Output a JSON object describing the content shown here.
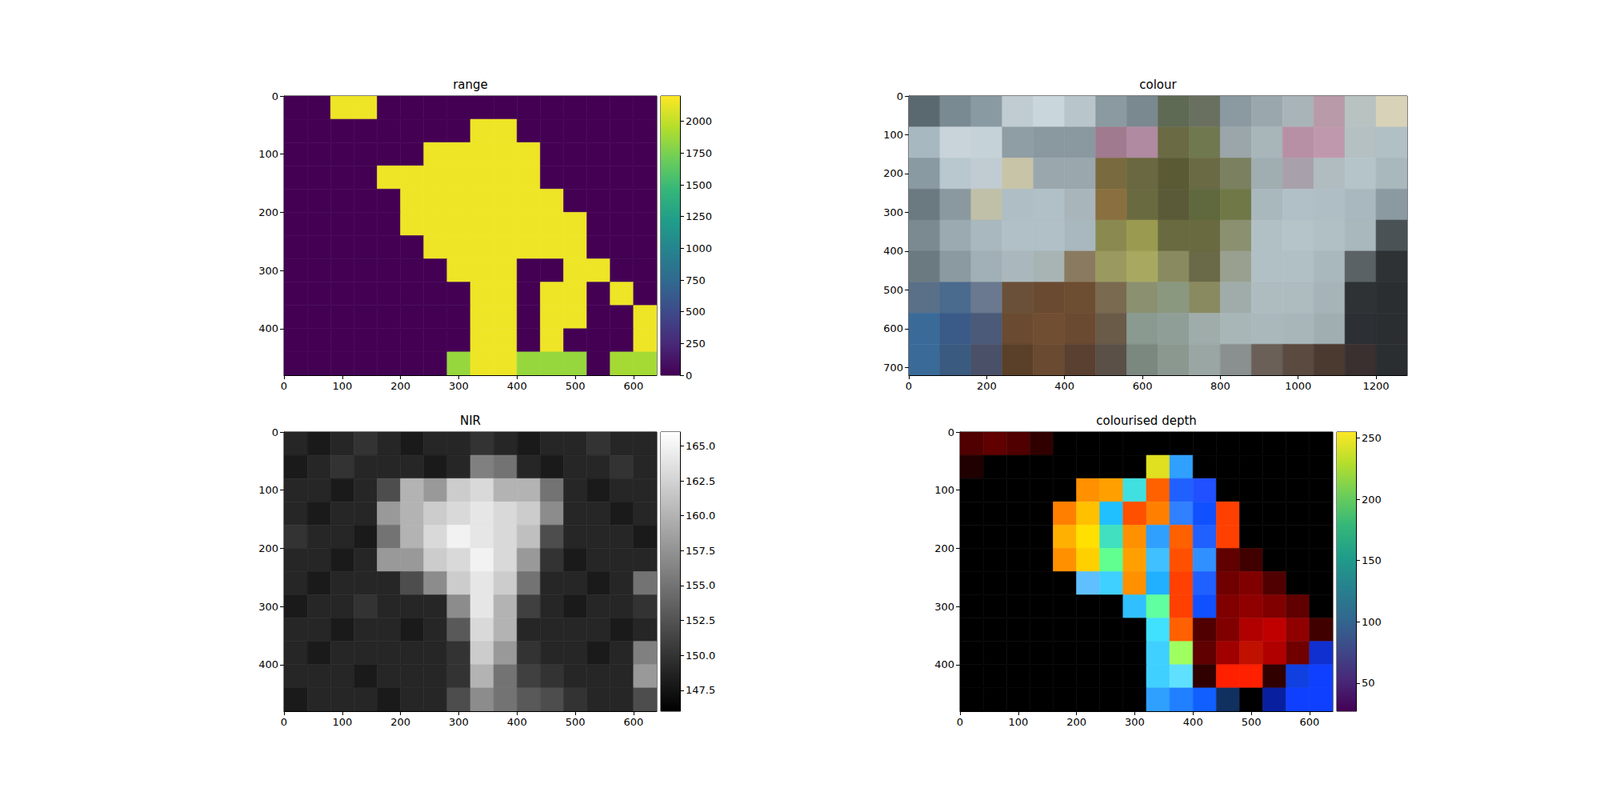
{
  "chart_data": [
    {
      "type": "heatmap",
      "title": "range",
      "xlim": [
        0,
        640
      ],
      "ylim": [
        480,
        0
      ],
      "xticks": [
        0,
        100,
        200,
        300,
        400,
        500,
        600
      ],
      "yticks": [
        0,
        100,
        200,
        300,
        400
      ],
      "cells": [
        [
          0,
          0,
          2150,
          2150,
          0,
          0,
          0,
          0,
          0,
          0,
          0,
          0,
          0,
          0,
          0,
          0
        ],
        [
          0,
          0,
          0,
          0,
          0,
          0,
          0,
          0,
          2150,
          2150,
          0,
          0,
          0,
          0,
          0,
          0
        ],
        [
          0,
          0,
          0,
          0,
          0,
          0,
          2150,
          2150,
          2150,
          2150,
          2150,
          0,
          0,
          0,
          0,
          0
        ],
        [
          0,
          0,
          0,
          0,
          2150,
          2150,
          2150,
          2150,
          2150,
          2150,
          2150,
          0,
          0,
          0,
          0,
          0
        ],
        [
          0,
          0,
          0,
          0,
          0,
          2150,
          2150,
          2150,
          2150,
          2150,
          2150,
          2150,
          0,
          0,
          0,
          0
        ],
        [
          0,
          0,
          0,
          0,
          0,
          2150,
          2150,
          2150,
          2150,
          2150,
          2150,
          2150,
          2150,
          0,
          0,
          0
        ],
        [
          0,
          0,
          0,
          0,
          0,
          0,
          2150,
          2150,
          2150,
          2150,
          2150,
          2150,
          2150,
          0,
          0,
          0
        ],
        [
          0,
          0,
          0,
          0,
          0,
          0,
          0,
          2150,
          2150,
          2150,
          0,
          0,
          2150,
          2150,
          0,
          0
        ],
        [
          0,
          0,
          0,
          0,
          0,
          0,
          0,
          0,
          2150,
          2150,
          0,
          2150,
          2150,
          0,
          2150,
          0
        ],
        [
          0,
          0,
          0,
          0,
          0,
          0,
          0,
          0,
          2150,
          2150,
          0,
          2150,
          2150,
          0,
          0,
          2150
        ],
        [
          0,
          0,
          0,
          0,
          0,
          0,
          0,
          0,
          2150,
          2150,
          0,
          2150,
          0,
          0,
          0,
          2150
        ],
        [
          0,
          0,
          0,
          0,
          0,
          0,
          0,
          1850,
          2150,
          2150,
          1850,
          1850,
          1850,
          0,
          1900,
          1900
        ]
      ],
      "colorbar": {
        "range": [
          0,
          2200
        ],
        "ticks": [
          0,
          250,
          500,
          750,
          1000,
          1250,
          1500,
          1750,
          2000
        ],
        "color": "viridis"
      }
    },
    {
      "type": "image",
      "title": "colour",
      "xlim": [
        0,
        1280
      ],
      "ylim": [
        720,
        0
      ],
      "xticks": [
        0,
        200,
        400,
        600,
        800,
        1000,
        1200
      ],
      "yticks": [
        0,
        100,
        200,
        300,
        400,
        500,
        600,
        700
      ],
      "colors": [
        [
          "#5a6870",
          "#7a8a92",
          "#8a9aa2",
          "#c0ccd2",
          "#c9d6dc",
          "#b8c6cc",
          "#8a9aa0",
          "#7a8890",
          "#5f6a55",
          "#6a7060",
          "#8a9aa0",
          "#9aa8ae",
          "#a8b4b8",
          "#b89aa8",
          "#b8c2c0",
          "#d8d2b8"
        ],
        [
          "#a8b8c0",
          "#c8d4da",
          "#c5d2d8",
          "#8f9ea5",
          "#8a98a0",
          "#8a98a0",
          "#a07a8e",
          "#b08aa0",
          "#6a6a45",
          "#707850",
          "#9aa6aa",
          "#a8b6ba",
          "#b890a5",
          "#c098ad",
          "#b4c0c2",
          "#b0c0c4"
        ],
        [
          "#8a9aa2",
          "#b8c8ce",
          "#c0ccd2",
          "#c8c4a8",
          "#9aa8ae",
          "#9aa8ae",
          "#7a6a40",
          "#6a6840",
          "#5a5a35",
          "#6a6a45",
          "#7a8060",
          "#a0aeb2",
          "#a8a0aa",
          "#b0bcc0",
          "#b4c4c8",
          "#a8b8bc"
        ],
        [
          "#6a7a80",
          "#8a98a0",
          "#c0c0a8",
          "#aebec4",
          "#b0c0c6",
          "#a8b6bb",
          "#8a7040",
          "#6a6a40",
          "#5a5a38",
          "#60683e",
          "#707848",
          "#a8b8bc",
          "#b0c0c6",
          "#aebec4",
          "#a8b8be",
          "#8a9aa0"
        ],
        [
          "#7a8a90",
          "#9aaab0",
          "#a8b8be",
          "#b0c0c6",
          "#b0c0c6",
          "#a8b8be",
          "#8a8a50",
          "#9a9a50",
          "#6a6a40",
          "#6a6a40",
          "#8a9070",
          "#b0c0c4",
          "#b4c4c8",
          "#b0c0c4",
          "#a8b8bc",
          "#4a5256"
        ],
        [
          "#6a7a80",
          "#8a9aa0",
          "#a0b0b6",
          "#aab8bd",
          "#a8b4b4",
          "#8a7a60",
          "#9a9a60",
          "#a8a860",
          "#8a8a60",
          "#6a6a48",
          "#9aa090",
          "#b0c0c4",
          "#b0c0c4",
          "#a8b8bc",
          "#5a6266",
          "#2e3234"
        ],
        [
          "#5a7088",
          "#4a6a8e",
          "#6a7890",
          "#6a5038",
          "#6a4a30",
          "#6e4e32",
          "#7a6a50",
          "#8a9070",
          "#8a9880",
          "#8a8a60",
          "#a0acaa",
          "#aebcc0",
          "#aebcc0",
          "#a6b4b8",
          "#2e3234",
          "#2a2e30"
        ],
        [
          "#3a6a98",
          "#3a5a88",
          "#4a5a78",
          "#6a4a30",
          "#704e32",
          "#6a4a30",
          "#6a5a48",
          "#8a9a90",
          "#909e98",
          "#a0acaa",
          "#a8b6b8",
          "#aab8bc",
          "#a8b6ba",
          "#a0aeb2",
          "#2c3034",
          "#2a2e30"
        ],
        [
          "#3a6a98",
          "#3a5a80",
          "#4a5068",
          "#5a4028",
          "#6a4a30",
          "#5a4030",
          "#5a5048",
          "#7a8880",
          "#8a9890",
          "#9aa6a4",
          "#8a9090",
          "#6a6058",
          "#5a4a40",
          "#4a3a30",
          "#3a3030",
          "#2a2e30"
        ]
      ]
    },
    {
      "type": "heatmap",
      "title": "NIR",
      "xlim": [
        0,
        640
      ],
      "ylim": [
        480,
        0
      ],
      "xticks": [
        0,
        100,
        200,
        300,
        400,
        500,
        600
      ],
      "yticks": [
        0,
        100,
        200,
        300,
        400
      ],
      "cells": [
        [
          149,
          148,
          149,
          150,
          149,
          148,
          149,
          149,
          150,
          149,
          148,
          149,
          149,
          150,
          149,
          149
        ],
        [
          148,
          149,
          150,
          149,
          149,
          149,
          148,
          149,
          156,
          155,
          149,
          148,
          149,
          149,
          150,
          149
        ],
        [
          149,
          149,
          148,
          149,
          152,
          160,
          158,
          162,
          163,
          160,
          160,
          155,
          149,
          148,
          149,
          149
        ],
        [
          149,
          148,
          149,
          149,
          158,
          160,
          162,
          163,
          164,
          163,
          162,
          157,
          149,
          149,
          148,
          149
        ],
        [
          150,
          149,
          149,
          148,
          155,
          160,
          163,
          165,
          164,
          163,
          161,
          152,
          149,
          149,
          149,
          148
        ],
        [
          149,
          149,
          148,
          149,
          158,
          158,
          162,
          163,
          165,
          163,
          158,
          150,
          148,
          149,
          149,
          149
        ],
        [
          149,
          148,
          149,
          149,
          149,
          152,
          157,
          162,
          164,
          162,
          155,
          149,
          149,
          148,
          149,
          155
        ],
        [
          148,
          149,
          149,
          150,
          149,
          149,
          149,
          157,
          164,
          160,
          151,
          149,
          148,
          149,
          149,
          150
        ],
        [
          149,
          149,
          148,
          149,
          149,
          148,
          149,
          153,
          163,
          160,
          149,
          149,
          149,
          149,
          148,
          149
        ],
        [
          149,
          148,
          149,
          149,
          149,
          149,
          149,
          150,
          162,
          158,
          150,
          149,
          149,
          148,
          149,
          156
        ],
        [
          149,
          149,
          149,
          148,
          149,
          149,
          149,
          150,
          160,
          155,
          151,
          150,
          149,
          149,
          149,
          158
        ],
        [
          148,
          149,
          149,
          149,
          148,
          149,
          149,
          152,
          157,
          155,
          153,
          152,
          150,
          149,
          149,
          152
        ]
      ],
      "colorbar": {
        "range": [
          146,
          166
        ],
        "ticks": [
          147.5,
          {
            "value": 150,
            "label": "150.0"
          },
          152.5,
          {
            "value": 155,
            "label": "155.0"
          },
          157.5,
          {
            "value": 160,
            "label": "160.0"
          },
          162.5,
          {
            "value": 165,
            "label": "165.0"
          }
        ],
        "color": "gray"
      }
    },
    {
      "type": "image",
      "title": "colourised depth",
      "xlim": [
        0,
        640
      ],
      "ylim": [
        480,
        0
      ],
      "xticks": [
        0,
        100,
        200,
        300,
        400,
        500,
        600
      ],
      "yticks": [
        0,
        100,
        200,
        300,
        400
      ],
      "colors": [
        [
          "#500000",
          "#600000",
          "#500000",
          "#300000",
          "#000000",
          "#000000",
          "#000000",
          "#000000",
          "#000000",
          "#000000",
          "#000000",
          "#000000",
          "#000000",
          "#000000",
          "#000000",
          "#000000"
        ],
        [
          "#200000",
          "#000000",
          "#000000",
          "#000000",
          "#000000",
          "#000000",
          "#000000",
          "#000000",
          "#e0e020",
          "#30a0ff",
          "#000000",
          "#000000",
          "#000000",
          "#000000",
          "#000000",
          "#000000"
        ],
        [
          "#000000",
          "#000000",
          "#000000",
          "#000000",
          "#000000",
          "#ff9000",
          "#ffa000",
          "#40e0e0",
          "#ff6000",
          "#2060ff",
          "#2050ff",
          "#000000",
          "#000000",
          "#000000",
          "#000000",
          "#000000"
        ],
        [
          "#000000",
          "#000000",
          "#000000",
          "#000000",
          "#ff8000",
          "#ffc000",
          "#20c0ff",
          "#ff5000",
          "#ff8000",
          "#3080ff",
          "#1050ff",
          "#ff4000",
          "#000000",
          "#000000",
          "#000000",
          "#000000"
        ],
        [
          "#000000",
          "#000000",
          "#000000",
          "#000000",
          "#ffb000",
          "#ffe000",
          "#40e0c0",
          "#ff9000",
          "#30a0ff",
          "#ff6000",
          "#2060ff",
          "#ff4000",
          "#000000",
          "#000000",
          "#000000",
          "#000000"
        ],
        [
          "#000000",
          "#000000",
          "#000000",
          "#000000",
          "#ff9000",
          "#ffd000",
          "#60ff90",
          "#ffa000",
          "#40c0ff",
          "#ff5000",
          "#3090ff",
          "#600000",
          "#400000",
          "#000000",
          "#000000",
          "#000000"
        ],
        [
          "#000000",
          "#000000",
          "#000000",
          "#000000",
          "#000000",
          "#60c0ff",
          "#40d0ff",
          "#ff9000",
          "#20b0ff",
          "#ff4000",
          "#2060ff",
          "#700000",
          "#800000",
          "#500000",
          "#000000",
          "#000000"
        ],
        [
          "#000000",
          "#000000",
          "#000000",
          "#000000",
          "#000000",
          "#000000",
          "#000000",
          "#30c0ff",
          "#60ffa0",
          "#ff4000",
          "#1050ff",
          "#800000",
          "#900000",
          "#800000",
          "#600000",
          "#000000"
        ],
        [
          "#000000",
          "#000000",
          "#000000",
          "#000000",
          "#000000",
          "#000000",
          "#000000",
          "#000000",
          "#40e0ff",
          "#ff6000",
          "#500000",
          "#800000",
          "#b00000",
          "#c00000",
          "#900000",
          "#400000"
        ],
        [
          "#000000",
          "#000000",
          "#000000",
          "#000000",
          "#000000",
          "#000000",
          "#000000",
          "#000000",
          "#40d0ff",
          "#a0ff60",
          "#600000",
          "#a00000",
          "#c01000",
          "#b00000",
          "#700000",
          "#1030d0"
        ],
        [
          "#000000",
          "#000000",
          "#000000",
          "#000000",
          "#000000",
          "#000000",
          "#000000",
          "#000000",
          "#40d0ff",
          "#60e0ff",
          "#300000",
          "#ff2000",
          "#ff2000",
          "#300000",
          "#1040e0",
          "#1040ff"
        ],
        [
          "#000000",
          "#000000",
          "#000000",
          "#000000",
          "#000000",
          "#000000",
          "#000000",
          "#000000",
          "#30a0ff",
          "#2080ff",
          "#1060ff",
          "#103060",
          "#000000",
          "#0820a0",
          "#1040ff",
          "#1040ff"
        ]
      ],
      "colorbar": {
        "range": [
          27,
          255
        ],
        "ticks": [
          50,
          100,
          150,
          200,
          250
        ],
        "color": "viridis"
      }
    }
  ]
}
